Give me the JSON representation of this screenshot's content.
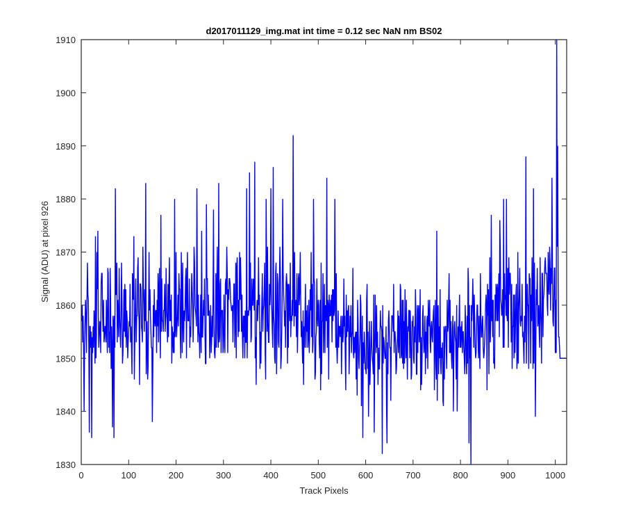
{
  "chart_data": {
    "type": "line",
    "title": "d2017011129_img.mat int time = 0.12 sec  NaN nm BS02",
    "xlabel": "Track Pixels",
    "ylabel": "Signal (ADU) at pixel 926",
    "xlim": [
      0,
      1024
    ],
    "ylim": [
      1830,
      1910
    ],
    "xticks": [
      0,
      100,
      200,
      300,
      400,
      500,
      600,
      700,
      800,
      900,
      1000
    ],
    "yticks": [
      1830,
      1840,
      1850,
      1860,
      1870,
      1880,
      1890,
      1900,
      1910
    ],
    "grid": false,
    "legend": "none",
    "series": [
      {
        "color": "#0000ff",
        "x_start": 1,
        "x_step": 1,
        "envelope_x": [
          0,
          100,
          200,
          300,
          400,
          500,
          600,
          700,
          800,
          850,
          900,
          950,
          990,
          1005,
          1010,
          1024
        ],
        "envelope_low": [
          1847,
          1848,
          1849,
          1849,
          1848,
          1848,
          1843,
          1844,
          1845,
          1848,
          1850,
          1850,
          1852,
          1850,
          1850,
          1850
        ],
        "envelope_high": [
          1866,
          1867,
          1868,
          1868,
          1868,
          1867,
          1862,
          1862,
          1863,
          1866,
          1868,
          1868,
          1871,
          1880,
          1850,
          1850
        ],
        "peaks": [
          {
            "x": 6,
            "y": 1840
          },
          {
            "x": 17,
            "y": 1836
          },
          {
            "x": 22,
            "y": 1835
          },
          {
            "x": 30,
            "y": 1873
          },
          {
            "x": 35,
            "y": 1874
          },
          {
            "x": 66,
            "y": 1837
          },
          {
            "x": 69,
            "y": 1835
          },
          {
            "x": 72,
            "y": 1882
          },
          {
            "x": 111,
            "y": 1873
          },
          {
            "x": 136,
            "y": 1883
          },
          {
            "x": 150,
            "y": 1838
          },
          {
            "x": 168,
            "y": 1877
          },
          {
            "x": 197,
            "y": 1880
          },
          {
            "x": 244,
            "y": 1882
          },
          {
            "x": 264,
            "y": 1879
          },
          {
            "x": 279,
            "y": 1878
          },
          {
            "x": 290,
            "y": 1883
          },
          {
            "x": 349,
            "y": 1882
          },
          {
            "x": 355,
            "y": 1885
          },
          {
            "x": 366,
            "y": 1887
          },
          {
            "x": 390,
            "y": 1880
          },
          {
            "x": 400,
            "y": 1882
          },
          {
            "x": 405,
            "y": 1886
          },
          {
            "x": 425,
            "y": 1880
          },
          {
            "x": 447,
            "y": 1892
          },
          {
            "x": 490,
            "y": 1880
          },
          {
            "x": 518,
            "y": 1884
          },
          {
            "x": 535,
            "y": 1880
          },
          {
            "x": 594,
            "y": 1835
          },
          {
            "x": 618,
            "y": 1836
          },
          {
            "x": 635,
            "y": 1832
          },
          {
            "x": 645,
            "y": 1834
          },
          {
            "x": 750,
            "y": 1874
          },
          {
            "x": 818,
            "y": 1834
          },
          {
            "x": 822,
            "y": 1830
          },
          {
            "x": 865,
            "y": 1877
          },
          {
            "x": 883,
            "y": 1876
          },
          {
            "x": 891,
            "y": 1880
          },
          {
            "x": 897,
            "y": 1880
          },
          {
            "x": 938,
            "y": 1888
          },
          {
            "x": 954,
            "y": 1882
          },
          {
            "x": 958,
            "y": 1839
          },
          {
            "x": 993,
            "y": 1884
          },
          {
            "x": 1003,
            "y": 1910
          },
          {
            "x": 1005,
            "y": 1890
          }
        ]
      }
    ]
  }
}
